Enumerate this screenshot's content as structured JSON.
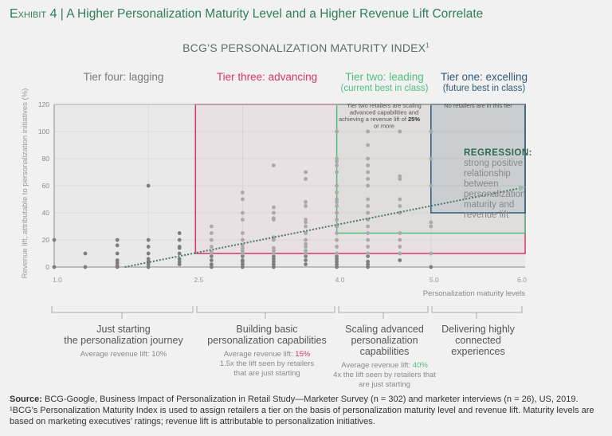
{
  "header": {
    "exhibit": "Exhibit 4",
    "separator": "|",
    "title": "A Higher Personalization Maturity Level and a Higher Revenue Lift Correlate",
    "subtitle": "BCG’S PERSONALIZATION MATURITY INDEX",
    "subtitle_sup": "1"
  },
  "tiers": [
    {
      "label": "Tier four: lagging",
      "sub": "",
      "color": "#7a7a7a"
    },
    {
      "label": "Tier three: advancing",
      "sub": "",
      "color": "#d9356b"
    },
    {
      "label": "Tier two: leading",
      "sub": "(current best in class)",
      "color": "#4fbf7f"
    },
    {
      "label": "Tier one: excelling",
      "sub": "(future best in class)",
      "color": "#2f5a7a"
    }
  ],
  "annotations": {
    "tier_two_note_a": "Tier two retailers are scaling",
    "tier_two_note_b": "advanced capabilities and",
    "tier_two_note_c": "achieving a revenue lift of",
    "tier_two_note_bold": "25%",
    "tier_two_note_d": "or more",
    "tier_one_note": "No retailers are in this tier",
    "regression_title": "REGRESSION:",
    "regression_text": "strong positive relationship between personalization maturity and revenue lift"
  },
  "stages": [
    {
      "title_a": "Just starting",
      "title_b": "the personalization journey",
      "avg_label": "Average revenue lift: ",
      "avg_value": "10%",
      "avg_color": "#8a8a8a",
      "note_a": "",
      "note_b": ""
    },
    {
      "title_a": "Building basic",
      "title_b": "personalization capabilities",
      "avg_label": "Average revenue lift: ",
      "avg_value": "15%",
      "avg_color": "#d9356b",
      "note_a": "1.5x the lift seen by retailers",
      "note_b": "that are just starting"
    },
    {
      "title_a": "Scaling advanced",
      "title_b": "personalization capabilities",
      "avg_label": "Average revenue lift: ",
      "avg_value": "40%",
      "avg_color": "#4fbf7f",
      "note_a": "4x the lift seen by retailers that",
      "note_b": "are just starting"
    },
    {
      "title_a": "Delivering highly",
      "title_b": "connected",
      "title_c": "experiences",
      "avg_label": "",
      "avg_value": "",
      "note_a": "",
      "note_b": ""
    }
  ],
  "footer": {
    "source_label": "Source:",
    "source_text": " BCG-Google, Business Impact of Personalization in Retail Study—Marketer Survey (n = 302) and marketer interviews (n = 26), US, 2019.",
    "footnote": "¹BCG’s Personalization Maturity Index is used to assign retailers a tier on the basis of personalization maturity level and revenue lift. Maturity levels are based on marketing executives’ ratings; revenue lift is attributable to personalization initiatives."
  },
  "chart_data": {
    "type": "scatter",
    "xlabel": "Personalization maturity levels",
    "ylabel": "Revenue lift, attributable to personalization initiatives (%)",
    "xlim": [
      1.0,
      6.0
    ],
    "ylim": [
      0,
      120
    ],
    "xticks": [
      "1.0",
      "2.5",
      "4.0",
      "5.0",
      "6.0"
    ],
    "xtick_values": [
      1.0,
      2.5,
      4.0,
      5.0,
      6.0
    ],
    "yticks": [
      "0",
      "20",
      "40",
      "60",
      "80",
      "100",
      "120"
    ],
    "ytick_values": [
      0,
      20,
      40,
      60,
      80,
      100,
      120
    ],
    "grid": true,
    "point_color": "#8a8a8a",
    "columns": [
      {
        "x": 1.0,
        "y": [
          0,
          20
        ]
      },
      {
        "x": 1.33,
        "y": [
          0,
          10
        ]
      },
      {
        "x": 1.67,
        "y": [
          0,
          1,
          3,
          5,
          10,
          16,
          20
        ]
      },
      {
        "x": 2.0,
        "y": [
          0,
          2,
          4,
          6,
          10,
          15,
          20,
          60
        ]
      },
      {
        "x": 2.33,
        "y": [
          2,
          4,
          6,
          10,
          14,
          15,
          20,
          25
        ]
      },
      {
        "x": 2.67,
        "y": [
          0,
          2,
          5,
          8,
          10,
          11,
          15,
          20,
          25,
          30
        ]
      },
      {
        "x": 3.0,
        "y": [
          0,
          2,
          4,
          5,
          8,
          10,
          12,
          14,
          16,
          20,
          25,
          35,
          40,
          50,
          55
        ]
      },
      {
        "x": 3.33,
        "y": [
          0,
          2,
          4,
          6,
          8,
          10,
          12,
          14,
          20,
          22,
          35,
          36,
          40,
          44,
          75
        ]
      },
      {
        "x": 3.67,
        "y": [
          2,
          5,
          8,
          10,
          12,
          15,
          17,
          20,
          25,
          30,
          33,
          35,
          45,
          48,
          65,
          70
        ]
      },
      {
        "x": 4.0,
        "y": [
          0,
          2,
          4,
          6,
          8,
          10,
          15,
          20,
          25,
          30,
          35,
          40,
          45,
          48,
          50,
          55,
          60,
          70,
          75,
          78,
          80,
          100
        ]
      },
      {
        "x": 4.33,
        "y": [
          0,
          2,
          4,
          8,
          10,
          15,
          20,
          25,
          30,
          35,
          40,
          45,
          50,
          60,
          65,
          70,
          75,
          80,
          90,
          100
        ]
      },
      {
        "x": 4.67,
        "y": [
          5,
          10,
          15,
          20,
          25,
          40,
          45,
          50,
          65,
          67,
          100
        ]
      },
      {
        "x": 5.0,
        "y": [
          0,
          10,
          30,
          33,
          60,
          80,
          100
        ]
      }
    ],
    "regression": {
      "x": [
        1.75,
        6.0
      ],
      "y": [
        0,
        58
      ],
      "color": "#4a7a62"
    },
    "tier_regions": [
      {
        "tier": "Tier three: advancing",
        "x": [
          2.5,
          6.0
        ],
        "y": [
          10,
          120
        ],
        "color": "#d9356b"
      },
      {
        "tier": "Tier two: leading",
        "x": [
          4.0,
          6.0
        ],
        "y": [
          25,
          120
        ],
        "color": "#4fbf7f"
      },
      {
        "tier": "Tier one: excelling",
        "x": [
          5.0,
          6.0
        ],
        "y": [
          40,
          120
        ],
        "color": "#2f5a7a"
      }
    ]
  }
}
